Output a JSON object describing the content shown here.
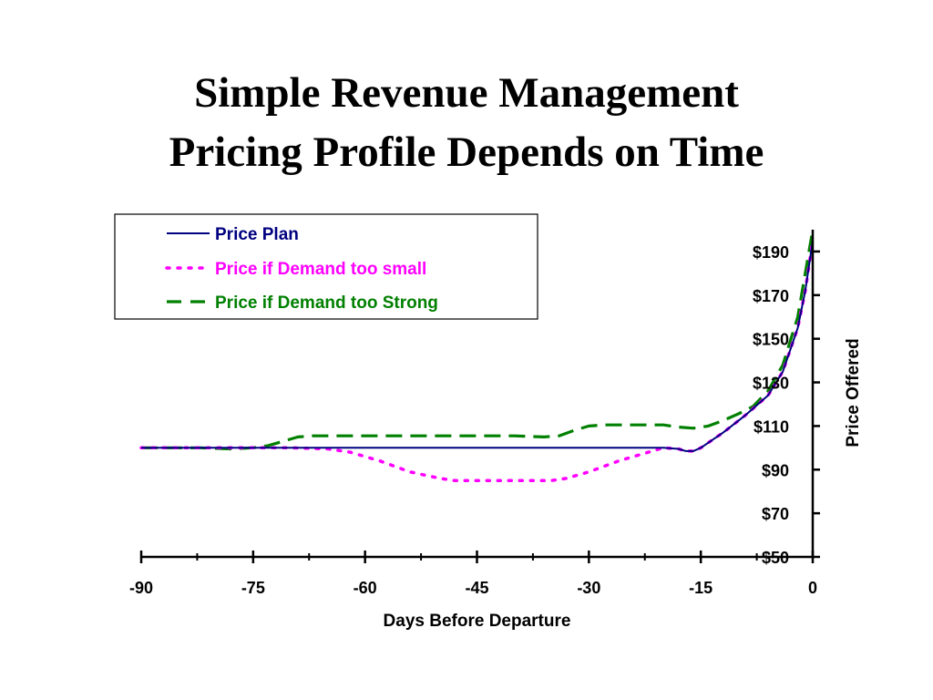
{
  "slide": {
    "title_line1": "Simple Revenue Management",
    "title_line2": "Pricing Profile Depends on Time"
  },
  "chart_data": {
    "type": "line",
    "xlabel": "Days Before Departure",
    "ylabel": "Price Offered",
    "xlim": [
      -90,
      0
    ],
    "ylim": [
      50,
      200
    ],
    "x_ticks": [
      "-90",
      "-75",
      "-60",
      "-45",
      "-30",
      "-15",
      "0"
    ],
    "x_tick_values": [
      -90,
      -75,
      -60,
      -45,
      -30,
      -15,
      0
    ],
    "y_ticks": [
      "$50",
      "$70",
      "$90",
      "$110",
      "$130",
      "$150",
      "$170",
      "$190"
    ],
    "y_tick_values": [
      50,
      70,
      90,
      110,
      130,
      150,
      170,
      190
    ],
    "grid": false,
    "legend": "top-left",
    "series": [
      {
        "name": "Price Plan",
        "color": "#000080",
        "style": "solid",
        "x": [
          -90,
          -80,
          -70,
          -60,
          -50,
          -40,
          -30,
          -20,
          -18,
          -17,
          -16,
          -15,
          -12,
          -9,
          -6,
          -4,
          -2,
          -1,
          0
        ],
        "y": [
          100,
          100,
          100,
          100,
          100,
          100,
          100,
          100,
          99.5,
          98.5,
          98.5,
          100,
          107,
          115,
          124,
          135,
          155,
          172,
          195
        ]
      },
      {
        "name": "Price if Demand too small",
        "color": "#ff00ff",
        "style": "dotted",
        "x": [
          -90,
          -80,
          -70,
          -65,
          -62,
          -58,
          -54,
          -50,
          -48,
          -45,
          -40,
          -37,
          -35,
          -33,
          -30,
          -26,
          -22,
          -20,
          -18,
          -17,
          -16,
          -15,
          -12,
          -9,
          -6,
          -4,
          -2,
          -1,
          0
        ],
        "y": [
          100,
          100,
          100,
          99.5,
          98,
          94,
          89,
          86,
          85,
          85,
          85,
          85,
          85,
          86,
          89,
          94,
          98,
          100,
          99.5,
          98.5,
          98.5,
          100,
          107,
          115,
          124,
          135,
          155,
          172,
          195
        ]
      },
      {
        "name": "Price if Demand too Strong",
        "color": "#008000",
        "style": "dashed",
        "x": [
          -90,
          -82,
          -78,
          -75,
          -73,
          -71,
          -69,
          -67,
          -60,
          -50,
          -40,
          -36,
          -34,
          -32,
          -30,
          -28,
          -24,
          -20,
          -18,
          -16,
          -14,
          -12,
          -10,
          -8,
          -6,
          -4,
          -2,
          -1,
          0
        ],
        "y": [
          100,
          100,
          99.5,
          100,
          101,
          103,
          105,
          105.5,
          105.5,
          105.5,
          105.5,
          105,
          105.5,
          108,
          110,
          110.5,
          110.5,
          110.5,
          109.5,
          109,
          110,
          112.5,
          115.5,
          119,
          126,
          138,
          160,
          180,
          200
        ]
      }
    ]
  }
}
